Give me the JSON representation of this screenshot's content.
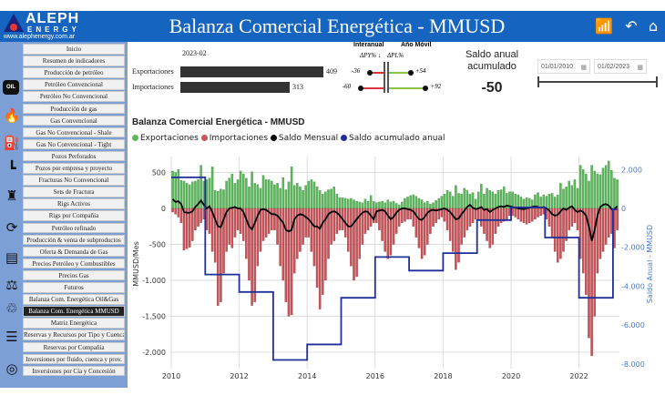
{
  "logo": {
    "brand": "ALEPH",
    "sub": "ENERGY",
    "url": "www.alephenergy.com.ar"
  },
  "header": {
    "title": "Balanza Comercial Energética - MMUSD",
    "icons": [
      "chart-icon",
      "back-icon",
      "home-icon"
    ]
  },
  "sidebar": {
    "items": [
      "Inicio",
      "Resumen de indicadores",
      "Producción de petróleo",
      "Petróleo Convencional",
      "Petróleo No Convencional",
      "Producción de gas",
      "Gas Convencional",
      "Gas No Convencional - Shale",
      "Gas No Convencional - Tight",
      "Pozos Perforados",
      "Pozos por empresa y proyecto",
      "Fracturas No Convencional",
      "Sets de Fractura",
      "Rigs Activos",
      "Rigs por Compañía",
      "Petróleo refinado",
      "Producción & venta de subproductos",
      "Oferta & Demanda de Gas",
      "Precios Petróleo y Combustibles",
      "Precios Gas",
      "Futuros",
      "Balanza Com. Energética Oil&Gas",
      "Balanza Com. Energética MMUSD",
      "Matriz Energética",
      "Reservas y Recursos por Tipo y Cuenca",
      "Reservas por Compañía",
      "Inversiones por fluido, cuenca y prov.",
      "Inversiones por Cía y Concesión"
    ],
    "active_index": 22,
    "oil_label": "OIL"
  },
  "kpi": {
    "period": "2023-02",
    "rows": [
      {
        "label": "Exportaciones",
        "value": "409",
        "value_num": 409,
        "py": "-36",
        "py_num": -36,
        "pl": "+54",
        "pl_num": 54
      },
      {
        "label": "Importaciones",
        "value": "313",
        "value_num": 313,
        "py": "-60",
        "py_num": -60,
        "pl": "+92",
        "pl_num": 92
      }
    ],
    "h_interanual": "Interanual",
    "h_anio_movil": "Año Móvil",
    "h_py": "ΔPY% ↓",
    "h_pl": "ΔPL%"
  },
  "saldo": {
    "label": "Saldo anual acumulado",
    "value": "-50"
  },
  "dates": {
    "from": "01/01/2010",
    "to": "01/02/2023"
  },
  "chart_data": {
    "type": "bar+line",
    "title": "Balanza Comercial Energética - MMUSD",
    "legend": [
      "Exportaciones",
      "Importaciones",
      "Saldo Mensual",
      "Saldo acumulado anual"
    ],
    "colors": {
      "exp": "#5cb85c",
      "imp": "#c9545a",
      "saldo": "#000000",
      "acum": "#1f2f99"
    },
    "ylabel": "MMUSD/Mes",
    "y2label": "Saldo Anual - MMUSD",
    "ylim": [
      -2200,
      700
    ],
    "y2lim": [
      -8300,
      2600
    ],
    "yticks": [
      500,
      0,
      -500,
      -1000,
      -1500,
      -2000
    ],
    "ytick_labels": [
      "500",
      "0",
      "-500",
      "-1.000",
      "-1.500",
      "-2.000"
    ],
    "y2ticks": [
      2000,
      0,
      -2000,
      -4000,
      -6000,
      -8000
    ],
    "y2tick_labels": [
      "2.000",
      "0",
      "-2.000",
      "-4.000",
      "-6.000",
      "-8.000"
    ],
    "xticks": [
      "2010",
      "2012",
      "2014",
      "2016",
      "2018",
      "2020",
      "2022"
    ],
    "start": "2010-01",
    "exportaciones": [
      520,
      500,
      540,
      390,
      380,
      350,
      330,
      370,
      380,
      400,
      600,
      380,
      400,
      420,
      580,
      250,
      240,
      270,
      260,
      380,
      420,
      480,
      350,
      400,
      520,
      480,
      420,
      300,
      510,
      350,
      330,
      280,
      460,
      400,
      400,
      380,
      330,
      350,
      280,
      430,
      260,
      370,
      580,
      320,
      350,
      300,
      250,
      320,
      380,
      400,
      370,
      300,
      250,
      200,
      230,
      260,
      270,
      300,
      200,
      150,
      150,
      140,
      130,
      140,
      120,
      100,
      90,
      80,
      130,
      100,
      180,
      100,
      80,
      90,
      100,
      80,
      120,
      90,
      100,
      70,
      50,
      90,
      140,
      160,
      180,
      190,
      170,
      140,
      120,
      80,
      100,
      60,
      80,
      110,
      140,
      170,
      200,
      250,
      230,
      170,
      320,
      210,
      200,
      280,
      250,
      200,
      220,
      130,
      230,
      340,
      200,
      280,
      250,
      230,
      200,
      250,
      260,
      300,
      210,
      230,
      230,
      200,
      190,
      160,
      130,
      150,
      140,
      120,
      190,
      220,
      160,
      190,
      170,
      200,
      210,
      160,
      190,
      350,
      270,
      300,
      380,
      320,
      400,
      280,
      600,
      540,
      480,
      380,
      600,
      520,
      480,
      470,
      560,
      600,
      660,
      530,
      420,
      400
    ],
    "importaciones": [
      -50,
      -80,
      -120,
      -200,
      -580,
      -560,
      -540,
      -450,
      -300,
      -250,
      -200,
      -150,
      -300,
      -350,
      -600,
      -750,
      -1350,
      -1300,
      -900,
      -600,
      -500,
      -550,
      -400,
      -300,
      -350,
      -450,
      -700,
      -1000,
      -1350,
      -1300,
      -800,
      -600,
      -450,
      -400,
      -350,
      -300,
      -300,
      -500,
      -800,
      -1000,
      -1300,
      -1500,
      -1480,
      -900,
      -700,
      -600,
      -500,
      -400,
      -400,
      -600,
      -800,
      -1100,
      -1400,
      -1200,
      -1000,
      -700,
      -500,
      -450,
      -350,
      -300,
      -300,
      -400,
      -600,
      -800,
      -1000,
      -950,
      -700,
      -500,
      -350,
      -300,
      -250,
      -200,
      -200,
      -300,
      -450,
      -600,
      -700,
      -650,
      -500,
      -350,
      -250,
      -200,
      -180,
      -150,
      -150,
      -250,
      -400,
      -550,
      -700,
      -650,
      -500,
      -350,
      -250,
      -200,
      -150,
      -120,
      -180,
      -300,
      -450,
      -600,
      -850,
      -750,
      -500,
      -400,
      -300,
      -250,
      -200,
      -150,
      -150,
      -250,
      -350,
      -450,
      -550,
      -500,
      -350,
      -250,
      -200,
      -180,
      -150,
      -100,
      -100,
      -120,
      -150,
      -180,
      -200,
      -220,
      -200,
      -180,
      -150,
      -120,
      -100,
      -80,
      -150,
      -250,
      -400,
      -600,
      -750,
      -700,
      -600,
      -450,
      -300,
      -250,
      -200,
      -300,
      -700,
      -900,
      -1200,
      -1800,
      -2050,
      -1500,
      -900,
      -700,
      -600,
      -500,
      -400,
      -350,
      -550,
      -300
    ],
    "saldo_mensual": [
      130,
      90,
      100,
      60,
      -50,
      -60,
      -60,
      -40,
      20,
      60,
      110,
      50,
      0,
      30,
      -50,
      -150,
      -250,
      -260,
      -150,
      -50,
      0,
      10,
      20,
      0,
      0,
      -50,
      -150,
      -250,
      -290,
      -200,
      -100,
      -20,
      -10,
      -20,
      -50,
      -80,
      -80,
      -100,
      -150,
      -200,
      -300,
      -320,
      -300,
      -150,
      -100,
      -80,
      -90,
      -120,
      -150,
      -200,
      -250,
      -250,
      -280,
      -200,
      -150,
      -80,
      -50,
      -40,
      -60,
      -100,
      -150,
      -200,
      -250,
      -250,
      -200,
      -150,
      -100,
      -60,
      -40,
      -50,
      -100,
      -150,
      -40,
      -30,
      -20,
      -40,
      -100,
      -150,
      -120,
      -60,
      -20,
      0,
      0,
      -10,
      -20,
      -40,
      -100,
      -150,
      -160,
      -120,
      -60,
      -30,
      -20,
      -30,
      -20,
      -10,
      0,
      -20,
      -50,
      -100,
      -150,
      -140,
      -80,
      -30,
      20,
      50,
      10,
      -10,
      0,
      20,
      -20,
      -10,
      -50,
      -20,
      0,
      20,
      30,
      20,
      40,
      30,
      20,
      10,
      0,
      -5,
      -10,
      0,
      10,
      20,
      30,
      20,
      10,
      20,
      0,
      -30,
      -80,
      -100,
      -90,
      -40,
      0,
      -20,
      10,
      30,
      -20,
      -50,
      -30,
      -50,
      -100,
      -250,
      -450,
      -300,
      -100,
      20,
      50,
      60,
      40,
      -10,
      -10,
      30
    ],
    "saldo_acumulado_anual": {
      "years": [
        2010,
        2011,
        2012,
        2013,
        2014,
        2015,
        2016,
        2017,
        2018,
        2019,
        2020,
        2021,
        2022,
        2023
      ],
      "values": [
        1600,
        -3400,
        -4300,
        -7800,
        -7000,
        -4600,
        -2500,
        -3200,
        -2300,
        -600,
        50,
        -1500,
        -4600,
        -50
      ]
    }
  }
}
